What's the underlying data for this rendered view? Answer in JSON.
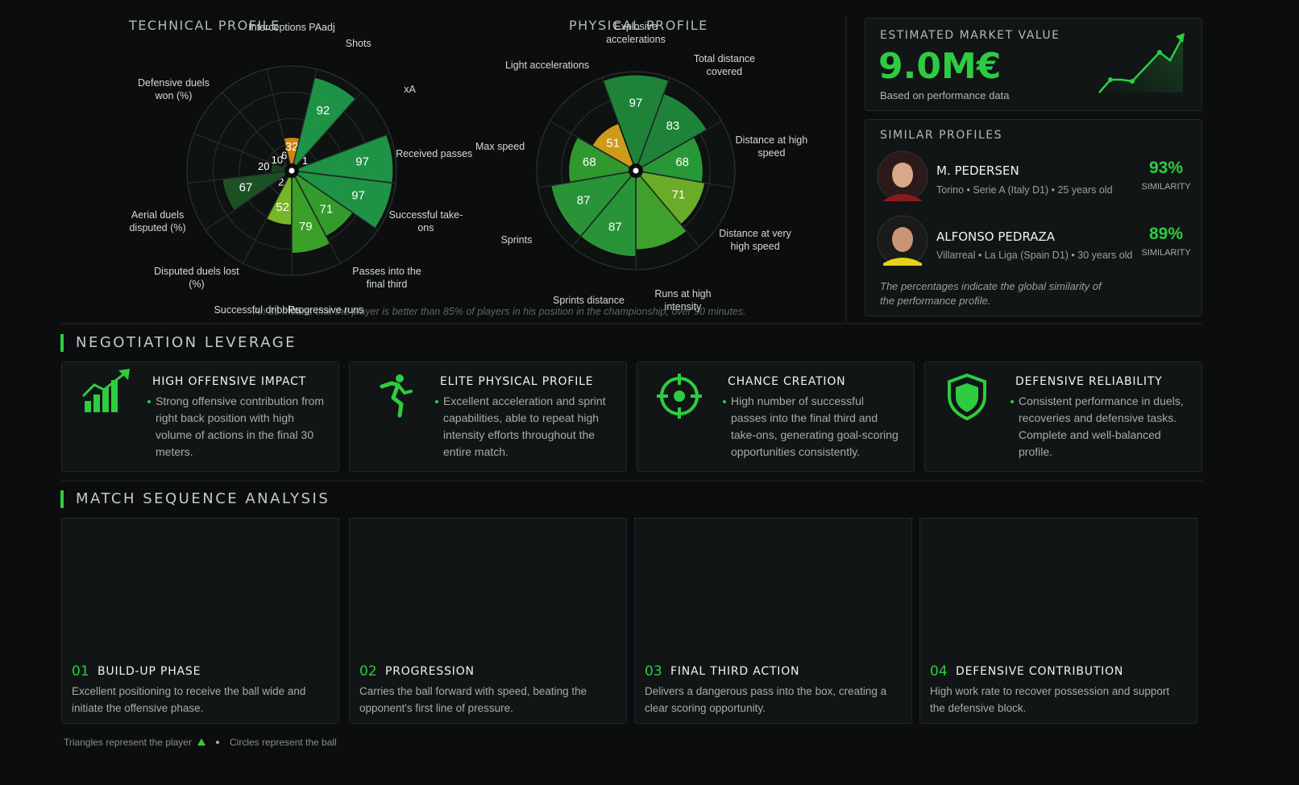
{
  "chart_data": [
    {
      "type": "polar",
      "title": "TECHNICAL PROFILE",
      "categories": [
        "Interceptions PAadj",
        "Shots",
        "xA",
        "Received passes",
        "Successful take-ons",
        "Passes into the final third",
        "Progressive runs",
        "Successful dribbles",
        "Disputed duels lost (%)",
        "Aerial duels disputed (%)",
        null,
        "Defensive duels won (%)",
        null
      ],
      "values": [
        32,
        92,
        1,
        97,
        97,
        71,
        79,
        52,
        2,
        67,
        20,
        10,
        6
      ],
      "colors": [
        "#e08a12",
        "#1f9a48",
        "#1a5a2c",
        "#1f9a48",
        "#1f9a48",
        "#35a32e",
        "#3ea82a",
        "#7dbf2a",
        "#24502a",
        "#1d5527",
        "#1b4422",
        "#1b4422",
        "#1b4422"
      ],
      "rlim": [
        0,
        100
      ],
      "rticks": [
        25,
        50,
        75,
        100
      ]
    },
    {
      "type": "polar",
      "title": "PHYSICAL PROFILE",
      "categories": [
        "Explosive accelerations",
        "Total distance covered",
        "Distance at high speed",
        "Distance at very high speed",
        "Runs at high intensity",
        "Sprints distance",
        "Sprints",
        "Max speed",
        "Light accelerations"
      ],
      "values": [
        97,
        83,
        68,
        71,
        80,
        87,
        87,
        68,
        51
      ],
      "value_labels": [
        "97",
        "83",
        "68",
        "71",
        null,
        "87",
        "87",
        "68",
        "51"
      ],
      "colors": [
        "#1f8a3c",
        "#1f8a3c",
        "#2aa03a",
        "#6fb52a",
        "#43a82e",
        "#2a9a3a",
        "#2a9a3a",
        "#32a030",
        "#d8a21a"
      ],
      "rlim": [
        0,
        100
      ],
      "rticks": [
        25,
        50,
        75,
        100
      ]
    }
  ],
  "chart_note": "An 85 means that the player is better than 85% of players in his position in the championship, over 90 minutes.",
  "market_value": {
    "title": "ESTIMATED MARKET VALUE",
    "value": "9.0M€",
    "subtitle": "Based on performance data"
  },
  "similar_profiles": {
    "title": "SIMILAR PROFILES",
    "players": [
      {
        "name": "M. PEDERSEN",
        "details": "Torino • Serie A (Italy D1) • 25 years old",
        "similarity": "93%",
        "similarity_label": "SIMILARITY"
      },
      {
        "name": "ALFONSO PEDRAZA",
        "details": "Villarreal • La Liga (Spain D1) • 30 years old",
        "similarity": "89%",
        "similarity_label": "SIMILARITY"
      }
    ],
    "note": "The percentages indicate the global similarity of the performance profile."
  },
  "negotiation": {
    "title": "NEGOTIATION LEVERAGE",
    "cards": [
      {
        "title": "HIGH OFFENSIVE IMPACT",
        "text": "Strong offensive contribution from right back position with high volume of actions in the final 30 meters."
      },
      {
        "title": "ELITE PHYSICAL PROFILE",
        "text": "Excellent acceleration and sprint capabilities, able to repeat high intensity efforts throughout the entire match."
      },
      {
        "title": "CHANCE CREATION",
        "text": "High number of successful passes into the final third and take-ons, generating goal-scoring opportunities consistently."
      },
      {
        "title": "DEFENSIVE RELIABILITY",
        "text": "Consistent performance in duels, recoveries and defensive tasks. Complete and well-balanced profile."
      }
    ]
  },
  "match_sequence": {
    "title": "MATCH SEQUENCE ANALYSIS",
    "steps": [
      {
        "number": "01",
        "title": "BUILD-UP PHASE",
        "text": "Excellent positioning to receive the ball wide and initiate the offensive phase."
      },
      {
        "number": "02",
        "title": "PROGRESSION",
        "text": "Carries the ball forward with speed, beating the opponent's first line of pressure."
      },
      {
        "number": "03",
        "title": "FINAL THIRD ACTION",
        "text": "Delivers a dangerous pass into the box, creating a clear scoring opportunity."
      },
      {
        "number": "04",
        "title": "DEFENSIVE CONTRIBUTION",
        "text": "High work rate to recover possession and support the defensive block."
      }
    ]
  },
  "legend": {
    "triangles": "Triangles represent the player",
    "circles": "Circles represent the ball"
  }
}
